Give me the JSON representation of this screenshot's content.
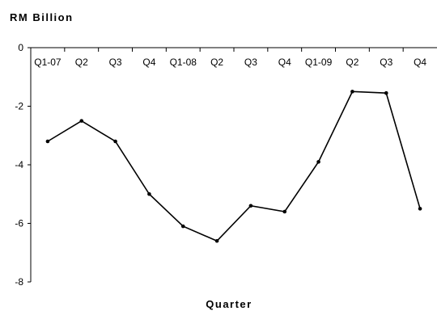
{
  "chart_data": {
    "type": "line",
    "ylabel": "RM Billion",
    "xlabel": "Quarter",
    "categories": [
      "Q1-07",
      "Q2",
      "Q3",
      "Q4",
      "Q1-08",
      "Q2",
      "Q3",
      "Q4",
      "Q1-09",
      "Q2",
      "Q3",
      "Q4"
    ],
    "series": [
      {
        "values": [
          -3.2,
          -2.5,
          -3.2,
          -5.0,
          -6.1,
          -6.6,
          -5.4,
          -5.6,
          -3.9,
          -1.5,
          -1.55,
          -5.5
        ]
      }
    ],
    "ylim": [
      -8,
      0
    ],
    "yticks": [
      "0",
      "-2",
      "-4",
      "-6",
      "-8"
    ],
    "grid": false,
    "legend": "none",
    "line_color": "#000000"
  }
}
